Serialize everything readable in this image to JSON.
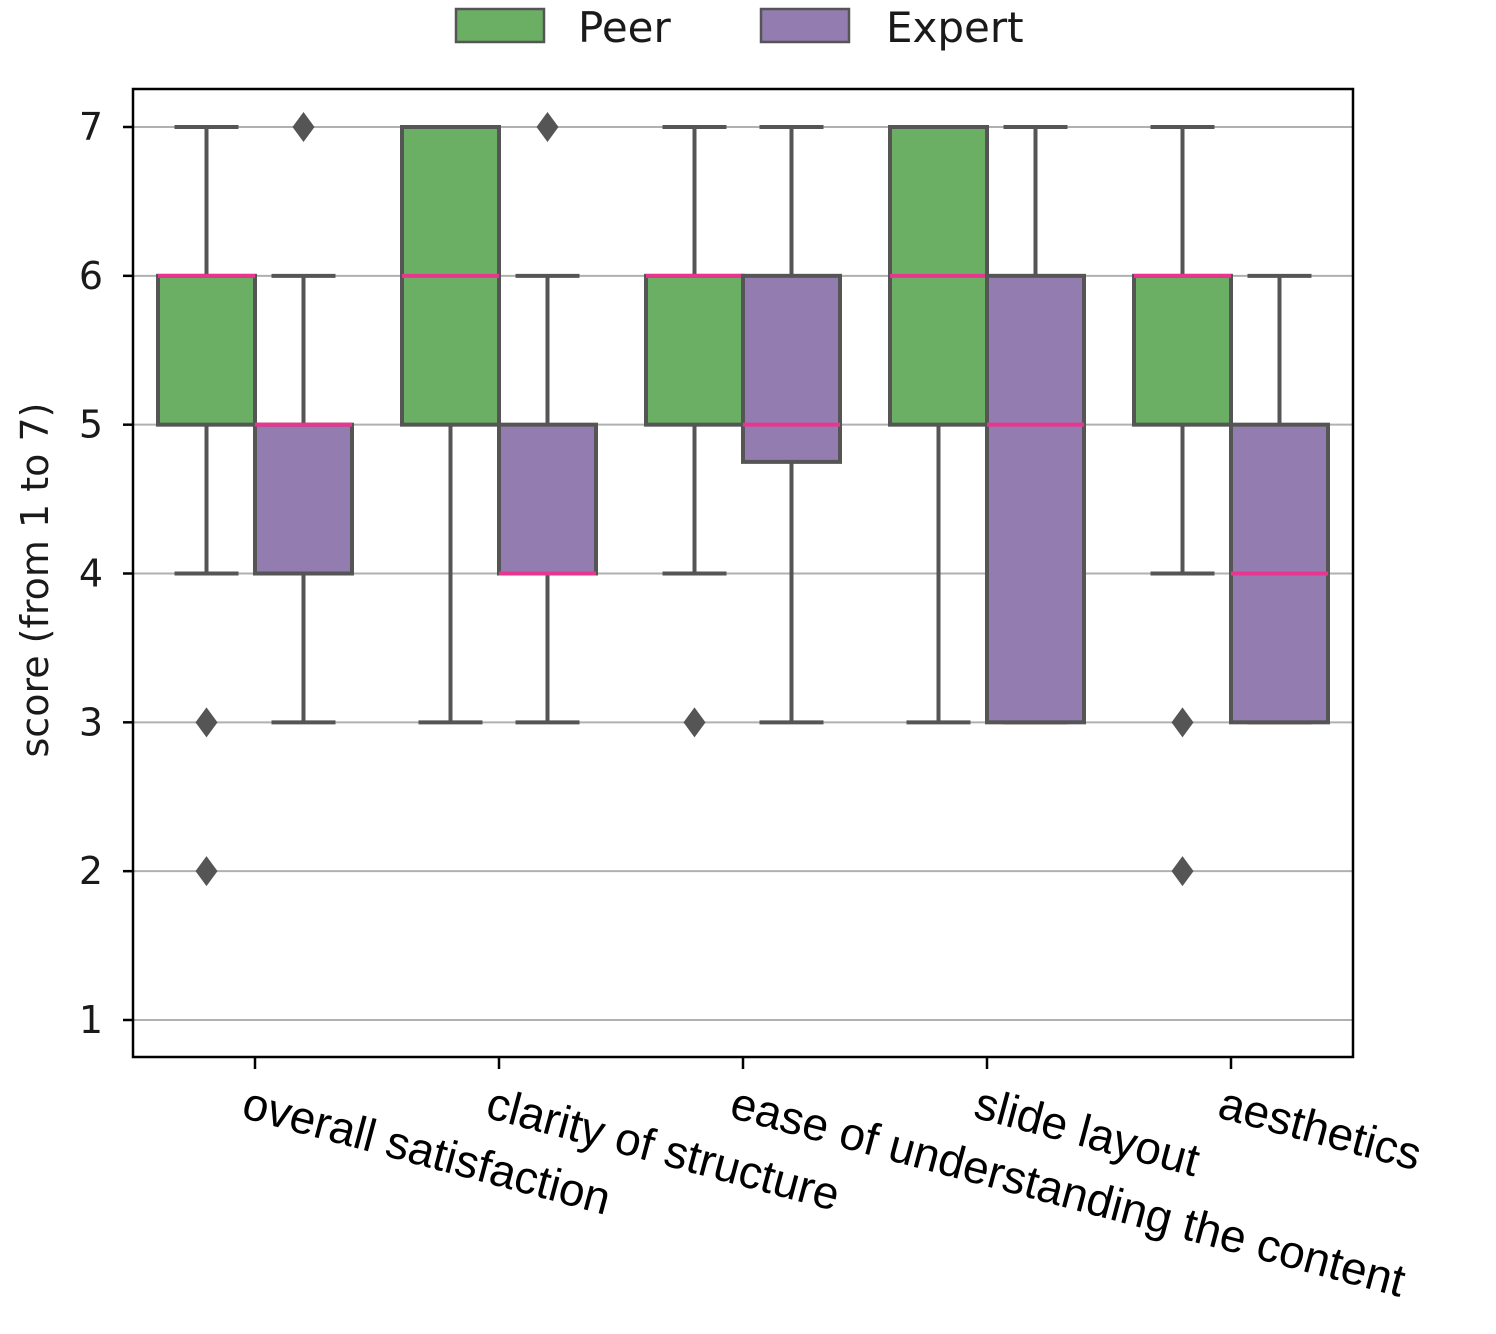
{
  "chart_data": {
    "type": "box",
    "categories": [
      "overall satisfaction",
      "clarity of structure",
      "ease of understanding the content",
      "slide layout",
      "aesthetics"
    ],
    "ylabel": "score (from 1 to 7)",
    "xlabel": "",
    "ylim": [
      0.75,
      7.25
    ],
    "yticks": [
      1,
      2,
      3,
      4,
      5,
      6,
      7
    ],
    "grid": "horizontal",
    "legend_position": "top-center",
    "median_color": "#e8368f",
    "series": [
      {
        "name": "Peer",
        "color": "#6aaf64",
        "boxes": [
          {
            "whisker_low": 4,
            "q1": 5,
            "median": 6,
            "q3": 6,
            "whisker_high": 7,
            "outliers": [
              3,
              2
            ]
          },
          {
            "whisker_low": 3,
            "q1": 5,
            "median": 6,
            "q3": 7,
            "whisker_high": 7,
            "outliers": []
          },
          {
            "whisker_low": 4,
            "q1": 5,
            "median": 6,
            "q3": 6,
            "whisker_high": 7,
            "outliers": [
              3
            ]
          },
          {
            "whisker_low": 3,
            "q1": 5,
            "median": 6,
            "q3": 7,
            "whisker_high": 7,
            "outliers": []
          },
          {
            "whisker_low": 4,
            "q1": 5,
            "median": 6,
            "q3": 6,
            "whisker_high": 7,
            "outliers": [
              3,
              2
            ]
          }
        ]
      },
      {
        "name": "Expert",
        "color": "#937db0",
        "boxes": [
          {
            "whisker_low": 3,
            "q1": 4,
            "median": 5,
            "q3": 5,
            "whisker_high": 6,
            "outliers": [
              7
            ]
          },
          {
            "whisker_low": 3,
            "q1": 4,
            "median": 4,
            "q3": 5,
            "whisker_high": 6,
            "outliers": [
              7
            ]
          },
          {
            "whisker_low": 3,
            "q1": 4.75,
            "median": 5,
            "q3": 6,
            "whisker_high": 7,
            "outliers": []
          },
          {
            "whisker_low": 3,
            "q1": 3,
            "median": 5,
            "q3": 6,
            "whisker_high": 7,
            "outliers": []
          },
          {
            "whisker_low": 3,
            "q1": 3,
            "median": 4,
            "q3": 5,
            "whisker_high": 6,
            "outliers": []
          }
        ]
      }
    ]
  }
}
